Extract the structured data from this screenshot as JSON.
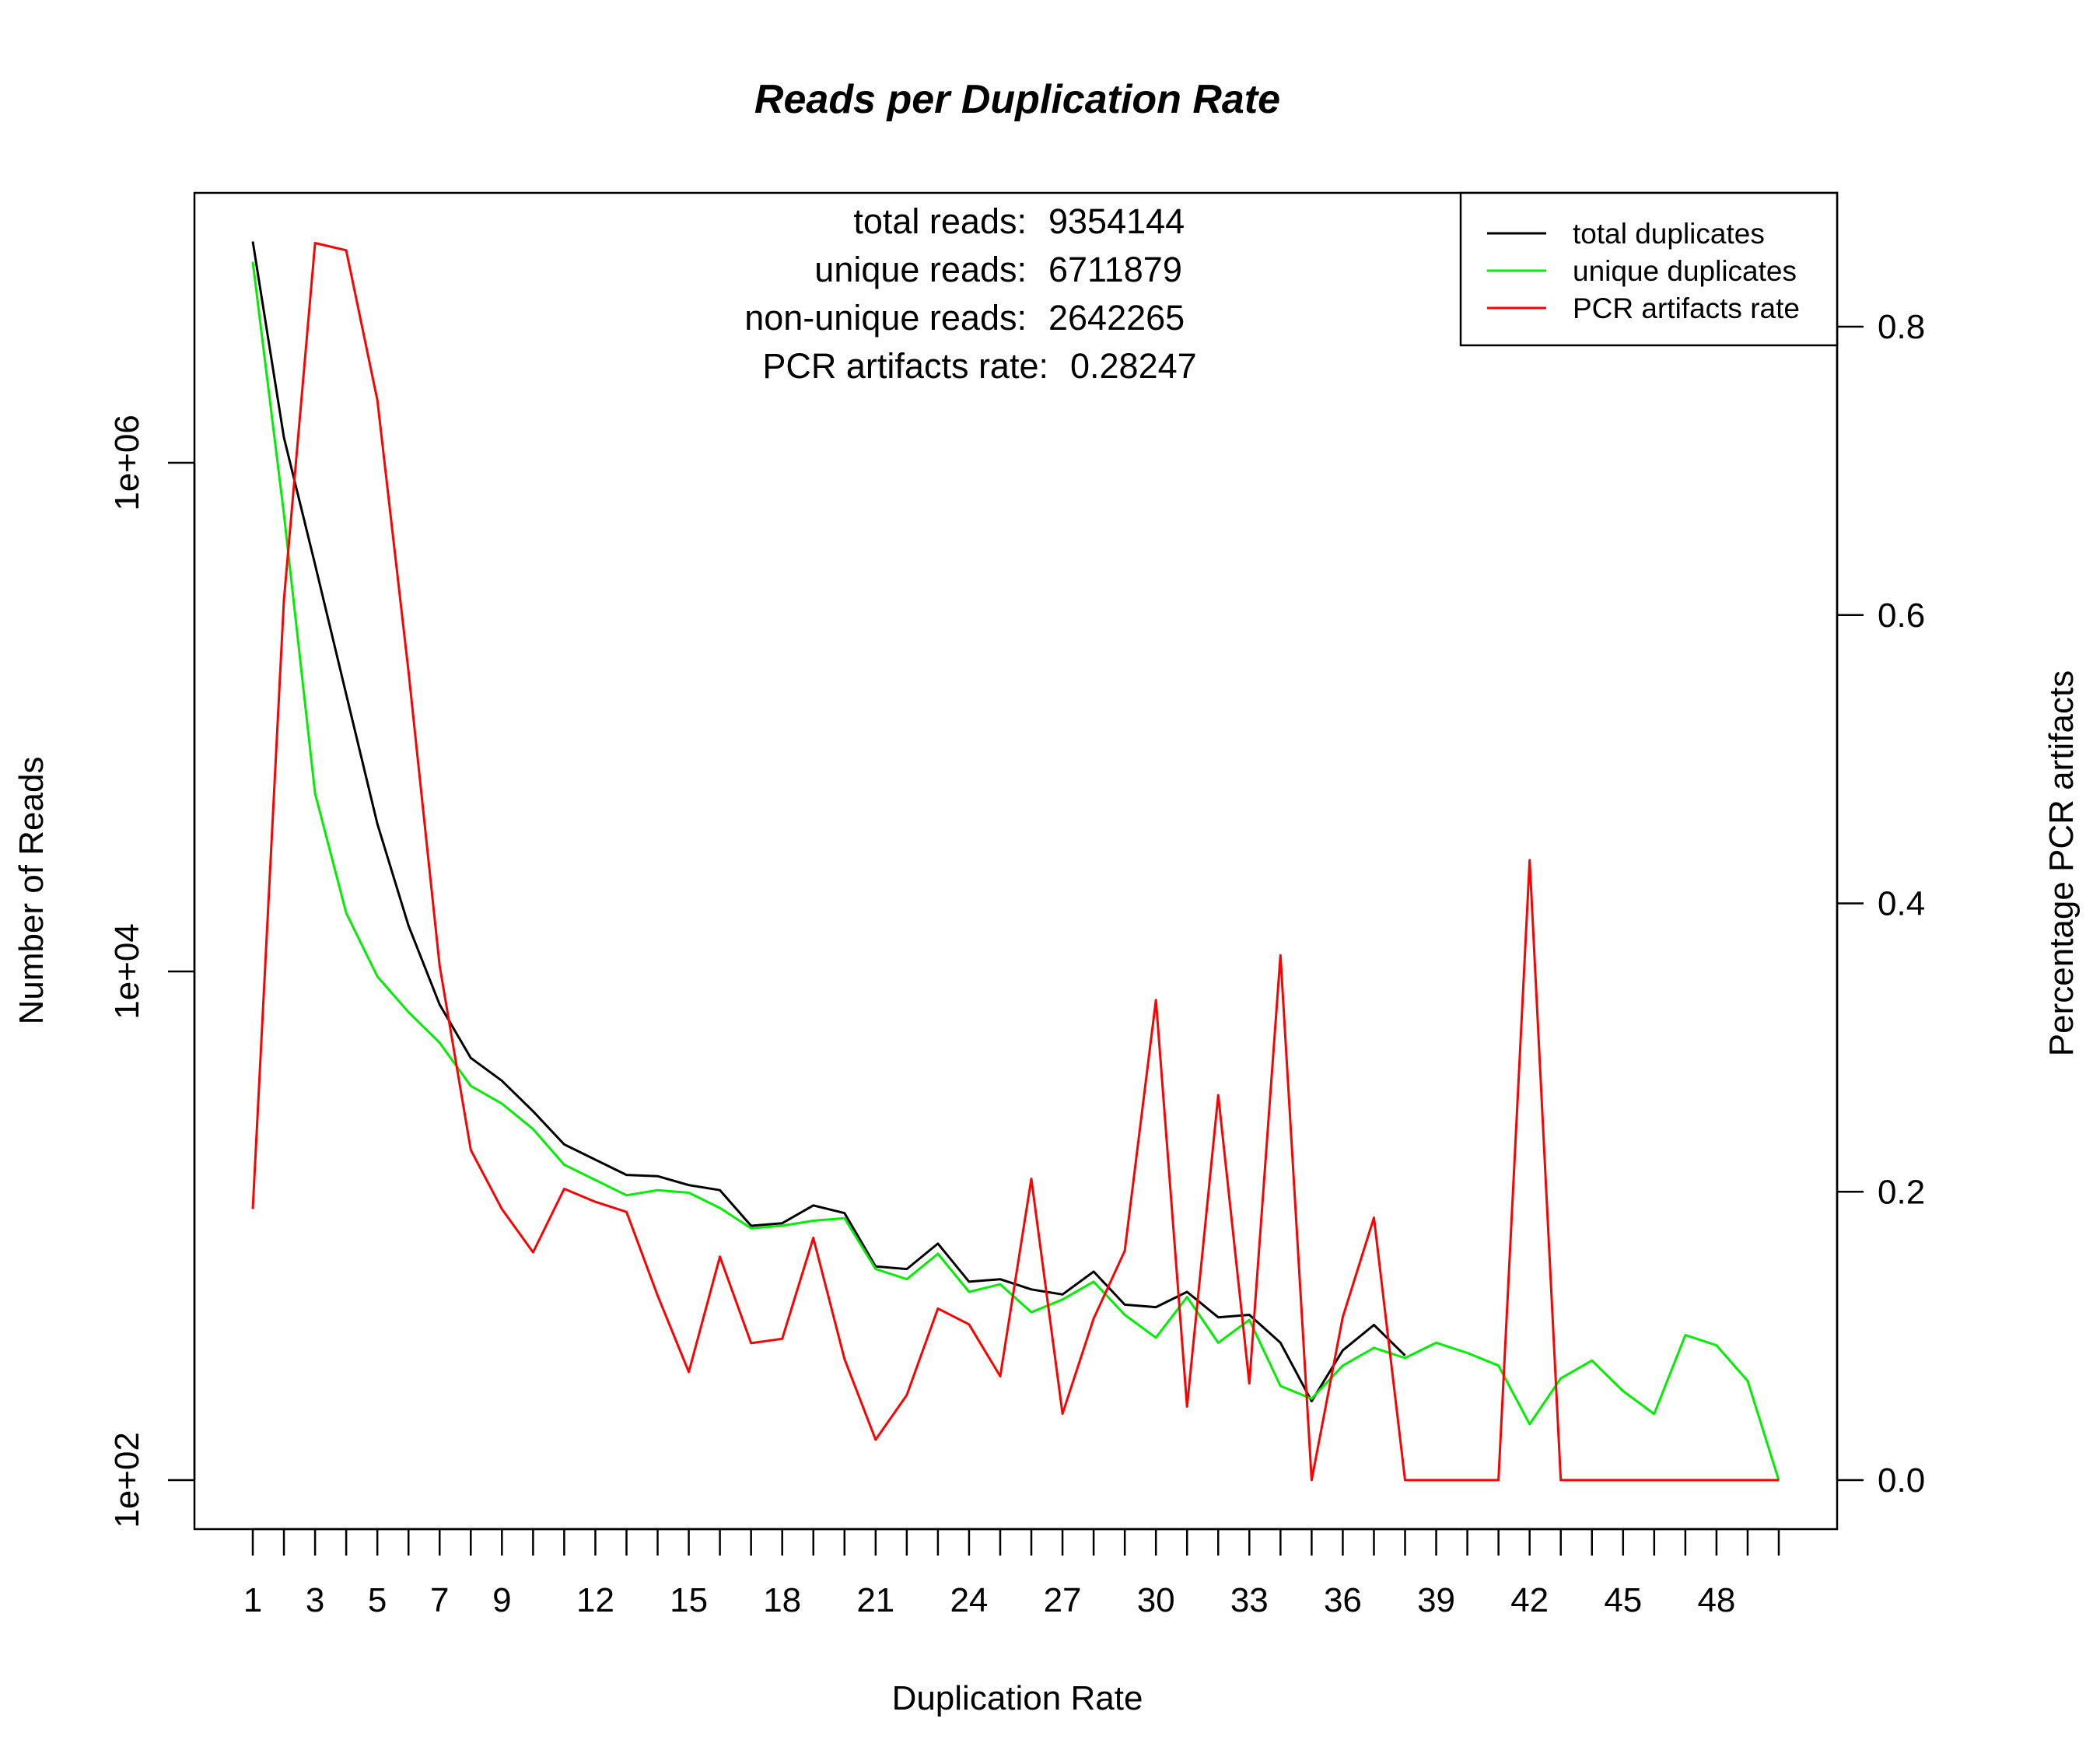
{
  "chart_data": {
    "type": "line",
    "title": "Reads per Duplication Rate",
    "xlabel": "Duplication Rate",
    "ylabel": "Number of Reads",
    "y2label": "Percentage PCR artifacts",
    "xlim": [
      1,
      50
    ],
    "ylim_log10": [
      1.8,
      7.2
    ],
    "y2lim": [
      -0.03,
      0.89
    ],
    "y_ticks": [
      {
        "value": 100,
        "label": "1e+02"
      },
      {
        "value": 10000,
        "label": "1e+04"
      },
      {
        "value": 1000000,
        "label": "1e+06"
      }
    ],
    "y2_ticks": [
      {
        "value": 0.0,
        "label": "0.0"
      },
      {
        "value": 0.2,
        "label": "0.2"
      },
      {
        "value": 0.4,
        "label": "0.4"
      },
      {
        "value": 0.6,
        "label": "0.6"
      },
      {
        "value": 0.8,
        "label": "0.8"
      }
    ],
    "x_ticks": [
      1,
      2,
      3,
      4,
      5,
      6,
      7,
      8,
      9,
      10,
      11,
      12,
      13,
      14,
      15,
      16,
      17,
      18,
      19,
      20,
      21,
      22,
      23,
      24,
      25,
      26,
      27,
      28,
      29,
      30,
      31,
      32,
      33,
      34,
      35,
      36,
      37,
      38,
      39,
      40,
      41,
      42,
      43,
      44,
      45,
      46,
      47,
      48,
      49,
      50
    ],
    "x_tick_labels": [
      {
        "value": 1,
        "label": "1"
      },
      {
        "value": 3,
        "label": "3"
      },
      {
        "value": 5,
        "label": "5"
      },
      {
        "value": 7,
        "label": "7"
      },
      {
        "value": 9,
        "label": "9"
      },
      {
        "value": 12,
        "label": "12"
      },
      {
        "value": 15,
        "label": "15"
      },
      {
        "value": 18,
        "label": "18"
      },
      {
        "value": 21,
        "label": "21"
      },
      {
        "value": 24,
        "label": "24"
      },
      {
        "value": 27,
        "label": "27"
      },
      {
        "value": 30,
        "label": "30"
      },
      {
        "value": 33,
        "label": "33"
      },
      {
        "value": 36,
        "label": "36"
      },
      {
        "value": 39,
        "label": "39"
      },
      {
        "value": 42,
        "label": "42"
      },
      {
        "value": 45,
        "label": "45"
      },
      {
        "value": 48,
        "label": "48"
      }
    ],
    "series": [
      {
        "name": "total duplicates",
        "axis": "left",
        "color": "#000000",
        "x": [
          1,
          2,
          3,
          4,
          5,
          6,
          7,
          8,
          9,
          10,
          11,
          12,
          13,
          14,
          15,
          16,
          17,
          18,
          19,
          20,
          21,
          22,
          23,
          24,
          25,
          26,
          27,
          28,
          29,
          30,
          31,
          32,
          33,
          34,
          35,
          36,
          37,
          38
        ],
        "log10_values": [
          6.87,
          6.1,
          5.6,
          5.09,
          4.58,
          4.18,
          3.87,
          3.66,
          3.57,
          3.45,
          3.32,
          3.26,
          3.2,
          3.195,
          3.16,
          3.14,
          3.0,
          3.01,
          3.08,
          3.05,
          2.84,
          2.83,
          2.93,
          2.78,
          2.79,
          2.75,
          2.73,
          2.82,
          2.69,
          2.68,
          2.74,
          2.64,
          2.65,
          2.54,
          2.31,
          2.51,
          2.61,
          2.49
        ]
      },
      {
        "name": "unique duplicates",
        "axis": "left",
        "color": "#00ee00",
        "x": [
          1,
          2,
          3,
          4,
          5,
          6,
          7,
          8,
          9,
          10,
          11,
          12,
          13,
          14,
          15,
          16,
          17,
          18,
          19,
          20,
          21,
          22,
          23,
          24,
          25,
          26,
          27,
          28,
          29,
          30,
          31,
          32,
          33,
          34,
          35,
          36,
          37,
          38,
          39,
          40,
          41,
          42,
          43,
          44,
          45,
          46,
          47,
          48,
          49,
          50
        ],
        "log10_values": [
          6.79,
          5.8,
          4.7,
          4.23,
          3.98,
          3.84,
          3.72,
          3.55,
          3.48,
          3.38,
          3.24,
          3.18,
          3.12,
          3.14,
          3.13,
          3.07,
          2.99,
          3.0,
          3.02,
          3.03,
          2.83,
          2.79,
          2.89,
          2.74,
          2.77,
          2.66,
          2.71,
          2.78,
          2.65,
          2.56,
          2.72,
          2.54,
          2.63,
          2.37,
          2.32,
          2.45,
          2.52,
          2.48,
          2.54,
          2.5,
          2.45,
          2.22,
          2.4,
          2.47,
          2.35,
          2.26,
          2.57,
          2.53,
          2.39,
          2.0
        ]
      },
      {
        "name": "PCR artifacts rate",
        "axis": "right",
        "color": "#ff0000",
        "x": [
          1,
          2,
          3,
          4,
          5,
          6,
          7,
          8,
          9,
          10,
          11,
          12,
          13,
          14,
          15,
          16,
          17,
          18,
          19,
          20,
          21,
          22,
          23,
          24,
          25,
          26,
          27,
          28,
          29,
          30,
          31,
          32,
          33,
          34,
          35,
          36,
          37,
          38,
          39,
          40,
          41,
          42,
          43,
          44,
          45,
          46,
          47,
          48,
          49,
          50
        ],
        "values": [
          0.188,
          0.61,
          0.858,
          0.853,
          0.749,
          0.561,
          0.357,
          0.229,
          0.188,
          0.158,
          0.202,
          0.193,
          0.186,
          0.128,
          0.075,
          0.155,
          0.095,
          0.098,
          0.168,
          0.084,
          0.028,
          0.059,
          0.119,
          0.108,
          0.072,
          0.209,
          0.046,
          0.112,
          0.159,
          0.333,
          0.051,
          0.267,
          0.067,
          0.364,
          0.0,
          0.113,
          0.182,
          0.0,
          0.0,
          0.0,
          0.0,
          0.43,
          0.0,
          0.0,
          0.0,
          0.0,
          0.0,
          0.0,
          0.0,
          0.0
        ]
      }
    ],
    "annotations": [
      {
        "label": "total reads:",
        "value": "9354144"
      },
      {
        "label": "unique reads:",
        "value": "6711879"
      },
      {
        "label": "non-unique reads:",
        "value": "2642265"
      },
      {
        "label": "PCR artifacts rate:",
        "value": "0.28247"
      }
    ],
    "legend": {
      "position": "top-right",
      "entries": [
        {
          "label": "total duplicates",
          "color": "#000000"
        },
        {
          "label": "unique duplicates",
          "color": "#00ee00"
        },
        {
          "label": "PCR artifacts rate",
          "color": "#ff0000"
        }
      ]
    }
  }
}
